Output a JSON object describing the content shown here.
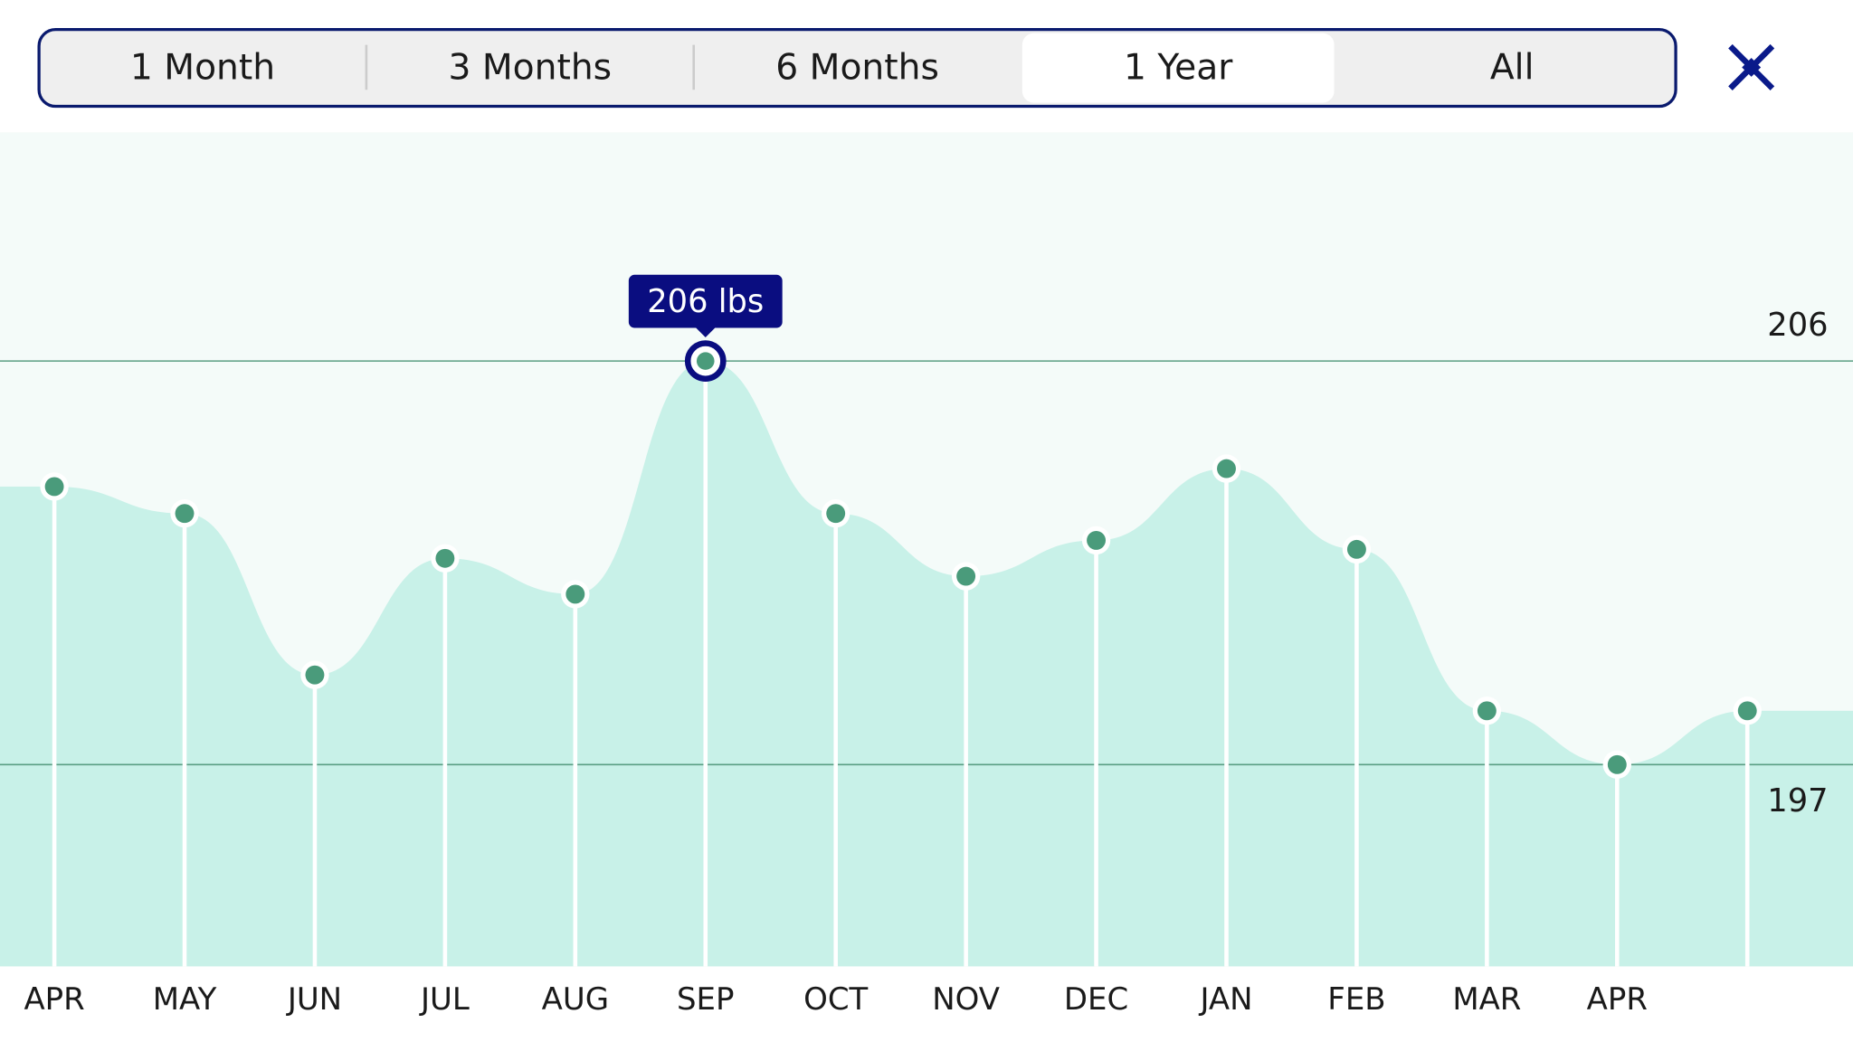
{
  "tabs": [
    "1 Month",
    "3 Months",
    "6 Months",
    "1 Year",
    "All"
  ],
  "selected_tab": 3,
  "chart_data": {
    "type": "area",
    "categories": [
      "APR",
      "MAY",
      "JUN",
      "JUL",
      "AUG",
      "SEP",
      "OCT",
      "NOV",
      "DEC",
      "JAN",
      "FEB",
      "MAR",
      "APR",
      null
    ],
    "values": [
      203.2,
      202.6,
      199.0,
      201.6,
      200.8,
      206,
      202.6,
      201.2,
      202.0,
      203.6,
      201.8,
      198.2,
      197,
      198.2
    ],
    "color": "#c8f1e8",
    "point_color": "#4a9b7b",
    "ylim": [
      192.5,
      211.1
    ],
    "yticks": [
      197,
      206
    ],
    "grid": true,
    "annotation": "206 lbs",
    "highlight_index": 5
  }
}
